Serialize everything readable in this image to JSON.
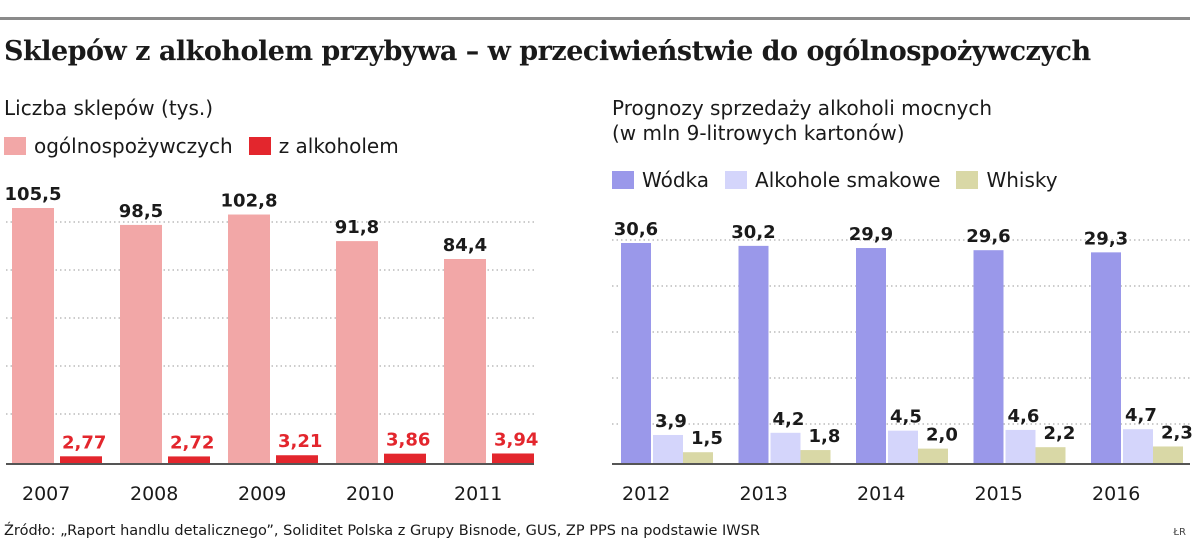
{
  "title": "Sklepów z alkoholem przybywa – w przeciwieństwie do ogólnospożywczych",
  "source": "Źródło: „Raport handlu detalicznego”, Soliditet Polska z Grupy Bisnode, GUS, ZP PPS na podstawie IWSR",
  "credit": "ŁR",
  "icons": [
    "legend-swatch"
  ],
  "chart_data": [
    {
      "type": "bar",
      "subtitle": "Liczba sklepów (tys.)",
      "categories": [
        "2007",
        "2008",
        "2009",
        "2010",
        "2011"
      ],
      "series": [
        {
          "name": "ogólnospożywczych",
          "values": [
            105.5,
            98.5,
            102.8,
            91.8,
            84.4
          ],
          "labels": [
            "105,5",
            "98,5",
            "102,8",
            "91,8",
            "84,4"
          ],
          "color": "#f2a7a7",
          "label_color": "#1a1a1a"
        },
        {
          "name": "z alkoholem",
          "values": [
            2.77,
            2.72,
            3.21,
            3.86,
            3.94
          ],
          "labels": [
            "2,77",
            "2,72",
            "3,21",
            "3,86",
            "3,94"
          ],
          "color": "#e3262d",
          "label_color": "#e3262d"
        }
      ],
      "ylim": [
        0,
        110
      ],
      "grid": "horizontal dotted"
    },
    {
      "type": "bar",
      "subtitle": [
        "Prognozy sprzedaży alkoholi mocnych",
        "(w mln 9-litrowych kartonów)"
      ],
      "categories": [
        "2012",
        "2013",
        "2014",
        "2015",
        "2016"
      ],
      "series": [
        {
          "name": "Wódka",
          "values": [
            30.6,
            30.2,
            29.9,
            29.6,
            29.3
          ],
          "labels": [
            "30,6",
            "30,2",
            "29,9",
            "29,6",
            "29,3"
          ],
          "color": "#9a98ea"
        },
        {
          "name": "Alkohole smakowe",
          "values": [
            3.9,
            4.2,
            4.5,
            4.6,
            4.7
          ],
          "labels": [
            "3,9",
            "4,2",
            "4,5",
            "4,6",
            "4,7"
          ],
          "color": "#d4d5fb"
        },
        {
          "name": "Whisky",
          "values": [
            1.5,
            1.8,
            2.0,
            2.2,
            2.3
          ],
          "labels": [
            "1,5",
            "1,8",
            "2,0",
            "2,2",
            "2,3"
          ],
          "color": "#d9d8a6"
        }
      ],
      "ylim": [
        0,
        32
      ],
      "grid": "horizontal dotted"
    }
  ]
}
